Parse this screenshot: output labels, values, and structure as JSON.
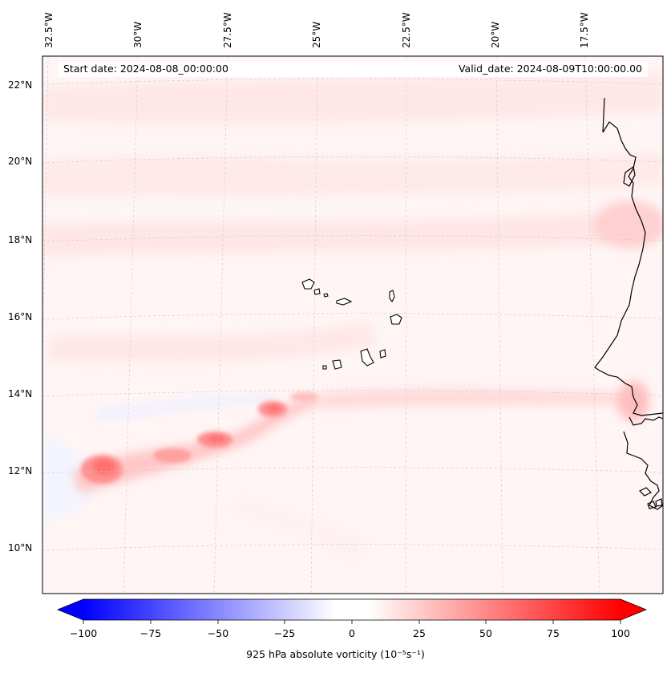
{
  "header": {
    "start_date": "Start date: 2024-08-08_00:00:00",
    "valid_date": "Valid_date: 2024-08-09T10:00:00.00"
  },
  "axes": {
    "longitude_labels": [
      "32.5°W",
      "30°W",
      "27.5°W",
      "25°W",
      "22.5°W",
      "20°W",
      "17.5°W"
    ],
    "latitude_labels": [
      "22°N",
      "20°N",
      "18°N",
      "16°N",
      "14°N",
      "12°N",
      "10°N"
    ]
  },
  "colorbar": {
    "ticks": [
      "−100",
      "−75",
      "−50",
      "−25",
      "0",
      "25",
      "50",
      "75",
      "100"
    ],
    "label": "925 hPa absolute vorticity (10⁻⁵s⁻¹)",
    "vmin": -100,
    "vmax": 100,
    "negative_color": "#0000ff",
    "positive_color": "#ff0000",
    "neutral_color": "#ffffff"
  },
  "colors": {
    "background_field": "#fff4f4",
    "coastline": "#000000",
    "gridline": "#bbbbbb"
  }
}
